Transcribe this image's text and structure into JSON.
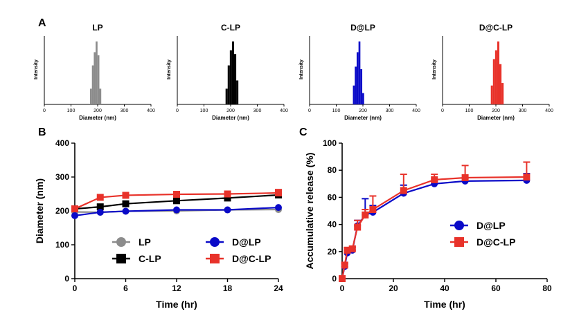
{
  "panel_labels": {
    "a": "A",
    "b": "B",
    "c": "C"
  },
  "colors": {
    "lp": "#8c8c8c",
    "clp": "#000000",
    "dlp": "#0a0ac8",
    "dclp": "#e8322a"
  },
  "chart_data": [
    {
      "id": "hist-lp",
      "type": "bar",
      "title": "LP",
      "xlabel": "Diameter (nm)",
      "ylabel": "Intensity",
      "xlim": [
        0,
        400
      ],
      "xticks": [
        "0",
        "100",
        "200",
        "300",
        "400"
      ],
      "color": "#8c8c8c",
      "bins": [
        175,
        182,
        189,
        196,
        203,
        210
      ],
      "values": [
        0.25,
        0.62,
        0.83,
        1.0,
        0.78,
        0.25
      ]
    },
    {
      "id": "hist-clp",
      "type": "bar",
      "title": "C-LP",
      "xlabel": "Diameter (nm)",
      "ylabel": "Intensity",
      "xlim": [
        0,
        400
      ],
      "xticks": [
        "0",
        "100",
        "200",
        "300",
        "400"
      ],
      "color": "#000000",
      "bins": [
        185,
        193,
        201,
        209,
        217,
        225
      ],
      "values": [
        0.25,
        0.62,
        0.86,
        1.0,
        0.8,
        0.38
      ]
    },
    {
      "id": "hist-dlp",
      "type": "bar",
      "title": "D@LP",
      "xlabel": "Diameter (nm)",
      "ylabel": "Intensity",
      "xlim": [
        0,
        400
      ],
      "xticks": [
        "0",
        "100",
        "200",
        "300",
        "400"
      ],
      "color": "#0a0ac8",
      "bins": [
        166,
        173,
        180,
        187,
        194,
        201
      ],
      "values": [
        0.3,
        0.6,
        0.83,
        1.0,
        0.56,
        0.18
      ]
    },
    {
      "id": "hist-dclp",
      "type": "bar",
      "title": "D@C-LP",
      "xlabel": "Diameter (nm)",
      "ylabel": "Intensity",
      "xlim": [
        0,
        400
      ],
      "xticks": [
        "0",
        "100",
        "200",
        "300",
        "400"
      ],
      "color": "#e8322a",
      "bins": [
        185,
        193,
        201,
        209,
        217,
        225
      ],
      "values": [
        0.3,
        0.72,
        0.86,
        1.0,
        0.64,
        0.34
      ]
    },
    {
      "id": "line-b",
      "type": "line",
      "title": "",
      "xlabel": "Time (hr)",
      "ylabel": "Diameter (nm)",
      "xlim": [
        0,
        24
      ],
      "ylim": [
        0,
        400
      ],
      "xticks": [
        "0",
        "6",
        "12",
        "18",
        "24"
      ],
      "yticks": [
        "0",
        "100",
        "200",
        "300",
        "400"
      ],
      "x": [
        0,
        3,
        6,
        12,
        18,
        24
      ],
      "series": [
        {
          "name": "LP",
          "color": "#8c8c8c",
          "marker": "circle",
          "values": [
            197,
            196,
            199,
            200,
            203,
            204
          ],
          "errors": [
            0,
            0,
            0,
            0,
            0,
            0
          ]
        },
        {
          "name": "C-LP",
          "color": "#000000",
          "marker": "square",
          "values": [
            206,
            212,
            221,
            230,
            238,
            247
          ],
          "errors": [
            0,
            0,
            0,
            0,
            8,
            10
          ]
        },
        {
          "name": "D@LP",
          "color": "#0a0ac8",
          "marker": "circle",
          "values": [
            186,
            196,
            199,
            203,
            203,
            210
          ],
          "errors": [
            0,
            0,
            0,
            0,
            0,
            0
          ]
        },
        {
          "name": "D@C-LP",
          "color": "#e8322a",
          "marker": "square",
          "values": [
            206,
            240,
            246,
            249,
            250,
            253
          ],
          "errors": [
            0,
            0,
            0,
            0,
            0,
            10
          ]
        }
      ],
      "legend": "bottom"
    },
    {
      "id": "line-c",
      "type": "line",
      "title": "",
      "xlabel": "Time (hr)",
      "ylabel": "Accumulative release (%)",
      "xlim": [
        0,
        80
      ],
      "ylim": [
        0,
        100
      ],
      "xticks": [
        "0",
        "20",
        "40",
        "60",
        "80"
      ],
      "yticks": [
        "0",
        "20",
        "40",
        "60",
        "80",
        "100"
      ],
      "x": [
        0,
        1,
        2,
        4,
        6,
        9,
        12,
        24,
        36,
        48,
        72
      ],
      "series": [
        {
          "name": "D@LP",
          "color": "#0a0ac8",
          "marker": "circle",
          "values": [
            0,
            9,
            19,
            21,
            39,
            47,
            49,
            63,
            70,
            72,
            72.5
          ],
          "errors": [
            0,
            2,
            2,
            2,
            4,
            12,
            5,
            6,
            2,
            2,
            5
          ]
        },
        {
          "name": "D@C-LP",
          "color": "#e8322a",
          "marker": "square",
          "values": [
            0,
            10,
            21,
            22,
            38,
            47,
            51,
            65,
            73,
            74.5,
            75
          ],
          "errors": [
            0,
            2,
            2,
            2,
            5,
            4,
            10,
            12,
            4,
            9,
            11
          ]
        }
      ],
      "legend": "center-right"
    }
  ]
}
